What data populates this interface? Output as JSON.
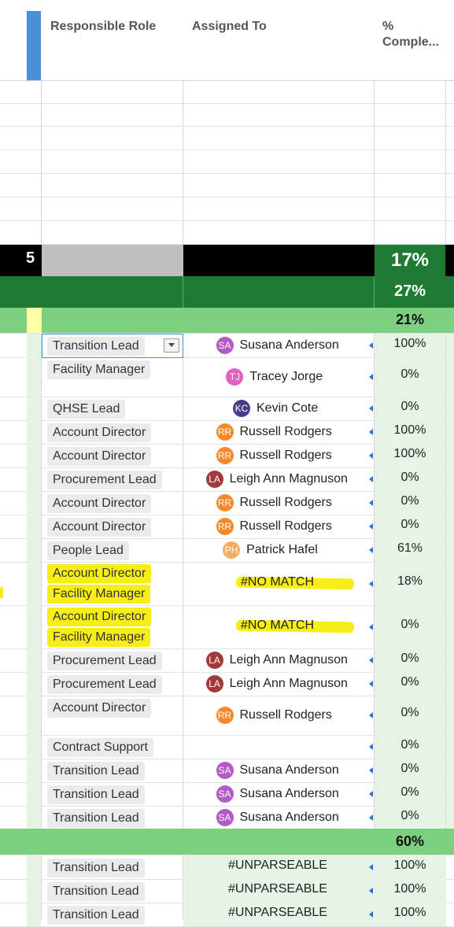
{
  "header": {
    "col_role": "Responsible Role",
    "col_assigned": "Assigned To",
    "col_pct": "% Comple..."
  },
  "summary_rows": [
    {
      "label": "5",
      "pct": "17%"
    },
    {
      "label": "",
      "pct": "27%"
    },
    {
      "label": "",
      "pct": "21%"
    }
  ],
  "rows": [
    {
      "roles": [
        "Transition Lead"
      ],
      "initials": "SA",
      "name": "Susana Anderson",
      "color": "#b35ac4",
      "pct": "100%"
    },
    {
      "roles": [
        "Facility Manager"
      ],
      "initials": "TJ",
      "name": "Tracey Jorge",
      "color": "#e35fc0",
      "pct": "0%"
    },
    {
      "roles": [
        "QHSE Lead"
      ],
      "initials": "KC",
      "name": "Kevin Cote",
      "color": "#4a3b8c",
      "pct": "0%"
    },
    {
      "roles": [
        "Account Director"
      ],
      "initials": "RR",
      "name": "Russell Rodgers",
      "color": "#f28a2b",
      "pct": "100%"
    },
    {
      "roles": [
        "Account Director"
      ],
      "initials": "RR",
      "name": "Russell Rodgers",
      "color": "#f28a2b",
      "pct": "100%"
    },
    {
      "roles": [
        "Procurement Lead"
      ],
      "initials": "LA",
      "name": "Leigh Ann Magnuson",
      "color": "#a33a3a",
      "pct": "0%"
    },
    {
      "roles": [
        "Account Director"
      ],
      "initials": "RR",
      "name": "Russell Rodgers",
      "color": "#f28a2b",
      "pct": "0%"
    },
    {
      "roles": [
        "Account Director"
      ],
      "initials": "RR",
      "name": "Russell Rodgers",
      "color": "#f28a2b",
      "pct": "0%"
    },
    {
      "roles": [
        "People Lead"
      ],
      "initials": "PH",
      "name": "Patrick Hafel",
      "color": "#f5ad62",
      "pct": "61%"
    },
    {
      "roles": [
        "Account Director",
        "Facility Manager"
      ],
      "initials": "",
      "name": "#NO MATCH",
      "color": "",
      "pct": "18%"
    },
    {
      "roles": [
        "Account Director",
        "Facility Manager"
      ],
      "initials": "",
      "name": "#NO MATCH",
      "color": "",
      "pct": "0%"
    },
    {
      "roles": [
        "Procurement Lead"
      ],
      "initials": "LA",
      "name": "Leigh Ann Magnuson",
      "color": "#a33a3a",
      "pct": "0%"
    },
    {
      "roles": [
        "Procurement Lead"
      ],
      "initials": "LA",
      "name": "Leigh Ann Magnuson",
      "color": "#a33a3a",
      "pct": "0%"
    },
    {
      "roles": [
        "Account Director"
      ],
      "initials": "RR",
      "name": "Russell Rodgers",
      "color": "#f28a2b",
      "pct": "0%"
    },
    {
      "roles": [
        "Contract Support"
      ],
      "initials": "",
      "name": "",
      "color": "",
      "pct": "0%"
    },
    {
      "roles": [
        "Transition Lead"
      ],
      "initials": "SA",
      "name": "Susana Anderson",
      "color": "#b35ac4",
      "pct": "0%"
    },
    {
      "roles": [
        "Transition Lead"
      ],
      "initials": "SA",
      "name": "Susana Anderson",
      "color": "#b35ac4",
      "pct": "0%"
    },
    {
      "roles": [
        "Transition Lead"
      ],
      "initials": "SA",
      "name": "Susana Anderson",
      "color": "#b35ac4",
      "pct": "0%"
    }
  ],
  "group_total": {
    "pct": "60%"
  },
  "unparseable_rows": [
    {
      "role": "Transition Lead",
      "value": "#UNPARSEABLE",
      "pct": "100%"
    },
    {
      "role": "Transition Lead",
      "value": "#UNPARSEABLE",
      "pct": "100%"
    },
    {
      "role": "Transition Lead",
      "value": "#UNPARSEABLE",
      "pct": "100%"
    }
  ],
  "colors": {
    "dark_green": "#1f7b33",
    "light_green": "#7dcf80",
    "pale_green": "#e6f4e5",
    "yellow_row": "#ffffa8",
    "highlight": "#f7ee18",
    "header_accent": "#4a90d9"
  }
}
